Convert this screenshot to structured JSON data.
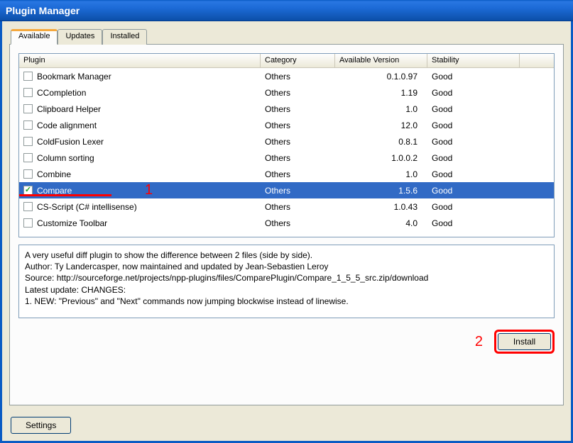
{
  "window": {
    "title": "Plugin Manager"
  },
  "tabs": {
    "available": "Available",
    "updates": "Updates",
    "installed": "Installed",
    "active_index": 0
  },
  "columns": {
    "plugin": "Plugin",
    "category": "Category",
    "version": "Available Version",
    "stability": "Stability"
  },
  "rows": [
    {
      "checked": false,
      "name": "Bookmark Manager",
      "category": "Others",
      "version": "0.1.0.97",
      "stability": "Good",
      "selected": false
    },
    {
      "checked": false,
      "name": "CCompletion",
      "category": "Others",
      "version": "1.19",
      "stability": "Good",
      "selected": false
    },
    {
      "checked": false,
      "name": "Clipboard Helper",
      "category": "Others",
      "version": "1.0",
      "stability": "Good",
      "selected": false
    },
    {
      "checked": false,
      "name": "Code alignment",
      "category": "Others",
      "version": "12.0",
      "stability": "Good",
      "selected": false
    },
    {
      "checked": false,
      "name": "ColdFusion Lexer",
      "category": "Others",
      "version": "0.8.1",
      "stability": "Good",
      "selected": false
    },
    {
      "checked": false,
      "name": "Column sorting",
      "category": "Others",
      "version": "1.0.0.2",
      "stability": "Good",
      "selected": false
    },
    {
      "checked": false,
      "name": "Combine",
      "category": "Others",
      "version": "1.0",
      "stability": "Good",
      "selected": false
    },
    {
      "checked": true,
      "name": "Compare",
      "category": "Others",
      "version": "1.5.6",
      "stability": "Good",
      "selected": true
    },
    {
      "checked": false,
      "name": "CS-Script (C# intellisense)",
      "category": "Others",
      "version": "1.0.43",
      "stability": "Good",
      "selected": false
    },
    {
      "checked": false,
      "name": "Customize Toolbar",
      "category": "Others",
      "version": "4.0",
      "stability": "Good",
      "selected": false
    }
  ],
  "description": {
    "line1": "A very useful diff plugin to show the difference between 2 files (side by side).",
    "line2": "Author: Ty Landercasper, now maintained and updated by Jean-Sebastien Leroy",
    "line3": "Source: http://sourceforge.net/projects/npp-plugins/files/ComparePlugin/Compare_1_5_5_src.zip/download",
    "line4": "Latest update: CHANGES:",
    "line5": "1. NEW: \"Previous\" and \"Next\" commands now jumping blockwise instead of linewise."
  },
  "buttons": {
    "install": "Install",
    "settings": "Settings"
  },
  "annotations": {
    "one": "1",
    "two": "2"
  },
  "colors": {
    "titlebar_gradient_top": "#0a5bc4",
    "titlebar_gradient_bottom": "#0c4fa8",
    "client_bg": "#ece9d8",
    "selection_bg": "#316ac5",
    "selection_fg": "#ffffff",
    "annotation": "#ff0000",
    "active_tab_highlight": "#f5a83d"
  }
}
